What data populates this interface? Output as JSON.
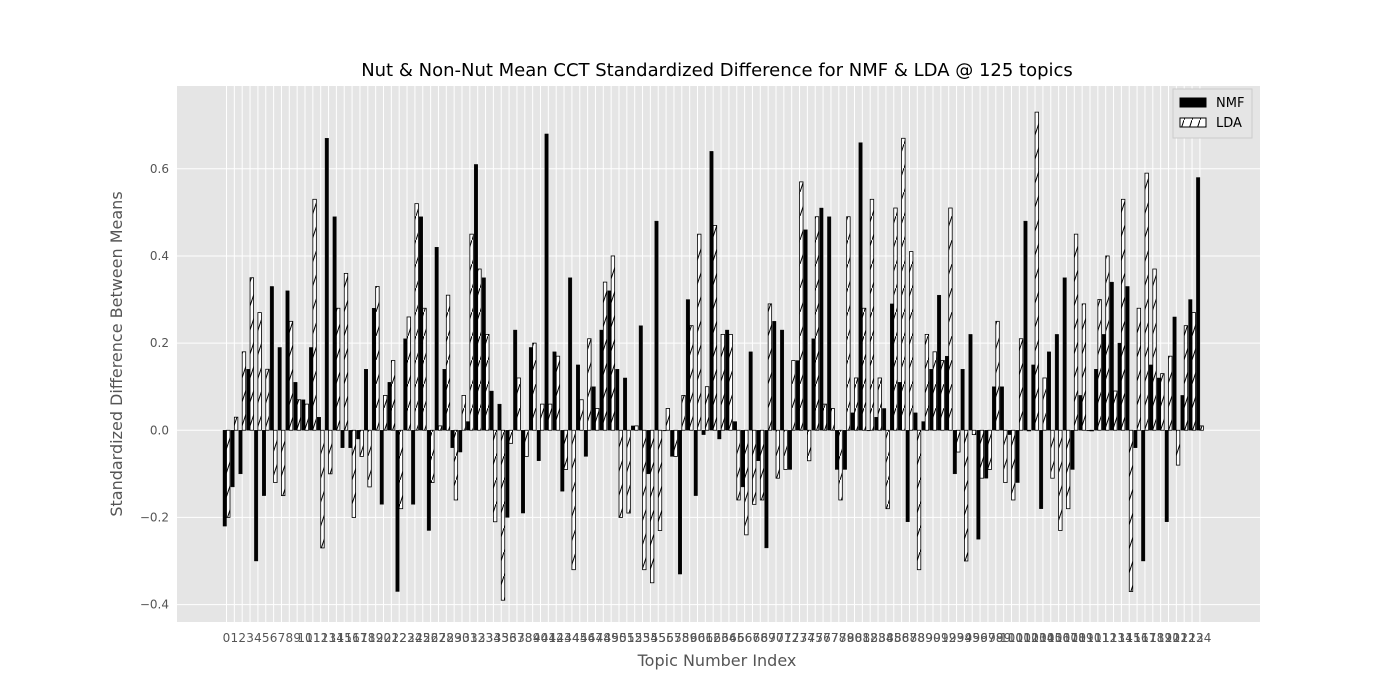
{
  "chart_data": {
    "type": "bar",
    "title": "Nut & Non-Nut Mean CCT Standardized Difference for NMF & LDA @ 125 topics",
    "xlabel": "Topic Number Index",
    "ylabel": "Standardized Difference Between Means",
    "ylim": [
      -0.44,
      0.79
    ],
    "yticks": [
      -0.4,
      -0.2,
      0.0,
      0.2,
      0.4,
      0.6
    ],
    "ytick_labels": [
      "−0.4",
      "−0.2",
      "0.0",
      "0.2",
      "0.4",
      "0.6"
    ],
    "grid": true,
    "legend_position": "top-right",
    "categories": [
      "0",
      "1",
      "2",
      "3",
      "4",
      "5",
      "6",
      "7",
      "8",
      "9",
      "10",
      "11",
      "12",
      "13",
      "14",
      "15",
      "16",
      "17",
      "18",
      "19",
      "20",
      "21",
      "22",
      "23",
      "24",
      "25",
      "26",
      "27",
      "28",
      "29",
      "30",
      "31",
      "32",
      "33",
      "34",
      "35",
      "36",
      "37",
      "38",
      "39",
      "40",
      "41",
      "42",
      "43",
      "44",
      "45",
      "46",
      "47",
      "48",
      "49",
      "50",
      "51",
      "52",
      "53",
      "54",
      "55",
      "56",
      "57",
      "58",
      "59",
      "60",
      "61",
      "62",
      "63",
      "64",
      "65",
      "66",
      "67",
      "68",
      "69",
      "70",
      "71",
      "72",
      "73",
      "74",
      "75",
      "76",
      "77",
      "78",
      "79",
      "80",
      "81",
      "82",
      "83",
      "84",
      "85",
      "86",
      "87",
      "88",
      "89",
      "90",
      "91",
      "92",
      "93",
      "94",
      "95",
      "96",
      "97",
      "98",
      "99",
      "100",
      "101",
      "102",
      "103",
      "104",
      "105",
      "106",
      "107",
      "108",
      "109",
      "110",
      "111",
      "112",
      "113",
      "114",
      "115",
      "116",
      "117",
      "118",
      "119",
      "120",
      "121",
      "122",
      "123",
      "124"
    ],
    "series": [
      {
        "name": "NMF",
        "color": "#000000",
        "values": [
          -0.22,
          -0.13,
          -0.1,
          0.14,
          -0.3,
          -0.15,
          0.33,
          0.19,
          0.32,
          0.11,
          0.07,
          0.19,
          0.03,
          0.67,
          0.49,
          -0.04,
          -0.04,
          -0.02,
          0.14,
          0.28,
          -0.17,
          0.11,
          -0.37,
          0.21,
          -0.17,
          0.49,
          -0.23,
          0.42,
          0.14,
          -0.04,
          -0.05,
          0.02,
          0.61,
          0.35,
          0.09,
          0.06,
          -0.2,
          0.23,
          -0.19,
          0.19,
          -0.07,
          0.68,
          0.18,
          -0.14,
          0.35,
          0.15,
          -0.06,
          0.1,
          0.23,
          0.32,
          0.14,
          0.12,
          0.01,
          0.24,
          -0.1,
          0.48,
          0.0,
          -0.06,
          -0.33,
          0.3,
          -0.15,
          -0.01,
          0.64,
          -0.02,
          0.23,
          0.02,
          -0.13,
          0.18,
          -0.07,
          -0.27,
          0.25,
          0.23,
          -0.09,
          0.16,
          0.46,
          0.21,
          0.51,
          0.49,
          -0.09,
          -0.09,
          0.04,
          0.66,
          0.0,
          0.03,
          0.05,
          0.29,
          0.11,
          -0.21,
          0.04,
          0.02,
          0.14,
          0.31,
          0.17,
          -0.1,
          0.14,
          0.22,
          -0.25,
          -0.11,
          0.1,
          0.1,
          -0.01,
          -0.12,
          0.48,
          0.15,
          -0.18,
          0.18,
          0.22,
          0.35,
          -0.09,
          0.08,
          0.0,
          0.14,
          0.22,
          0.34,
          0.2,
          0.33,
          -0.04,
          -0.3,
          0.15,
          0.12,
          -0.21,
          0.26,
          0.08,
          0.3,
          0.58
        ]
      },
      {
        "name": "LDA",
        "color": "#ffffff",
        "values": [
          -0.2,
          0.03,
          0.18,
          0.35,
          0.27,
          0.14,
          -0.12,
          -0.15,
          0.25,
          0.07,
          0.06,
          0.53,
          -0.27,
          -0.1,
          0.28,
          0.36,
          -0.2,
          -0.06,
          -0.13,
          0.33,
          0.08,
          0.16,
          -0.18,
          0.26,
          0.52,
          0.28,
          -0.12,
          0.01,
          0.31,
          -0.16,
          0.08,
          0.45,
          0.37,
          0.22,
          -0.21,
          -0.39,
          -0.03,
          0.12,
          -0.06,
          0.2,
          0.06,
          0.06,
          0.17,
          -0.09,
          -0.32,
          0.07,
          0.21,
          0.05,
          0.34,
          0.4,
          -0.2,
          -0.19,
          0.01,
          -0.32,
          -0.35,
          -0.23,
          0.05,
          -0.06,
          0.08,
          0.24,
          0.45,
          0.1,
          0.47,
          0.22,
          0.22,
          -0.16,
          -0.24,
          -0.17,
          -0.16,
          0.29,
          -0.11,
          -0.09,
          0.16,
          0.57,
          -0.07,
          0.49,
          0.06,
          0.05,
          -0.16,
          0.49,
          0.12,
          0.28,
          0.53,
          0.12,
          -0.18,
          0.51,
          0.67,
          0.41,
          -0.32,
          0.22,
          0.18,
          0.16,
          0.51,
          -0.05,
          -0.3,
          -0.01,
          -0.11,
          -0.09,
          0.25,
          -0.12,
          -0.16,
          0.21,
          0.0,
          0.73,
          0.12,
          -0.11,
          -0.23,
          -0.18,
          0.45,
          0.29,
          0.0,
          0.3,
          0.4,
          0.09,
          0.53,
          -0.37,
          0.28,
          0.59,
          0.37,
          0.13,
          0.17,
          -0.08,
          0.24,
          0.27,
          0.01
        ]
      }
    ]
  }
}
